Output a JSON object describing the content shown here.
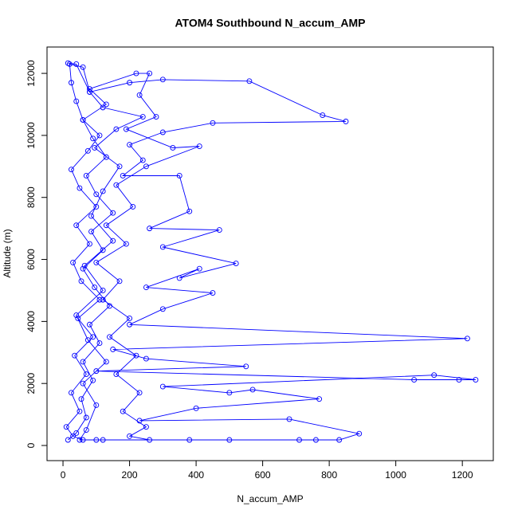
{
  "chart_data": {
    "type": "line",
    "title": "ATOM4 Southbound N_accum_AMP",
    "x_label": "N_accum_AMP",
    "y_label": "Altitude (m)",
    "color": "#0000ff",
    "markers": true,
    "xlim": [
      -48,
      1293
    ],
    "ylim": [
      -488,
      12850
    ],
    "xticks": [
      0,
      200,
      400,
      600,
      800,
      1000,
      1200
    ],
    "yticks": [
      0,
      2000,
      4000,
      6000,
      8000,
      10000,
      12000
    ],
    "x": [
      15,
      40,
      70,
      55,
      90,
      60,
      110,
      80,
      140,
      95,
      60,
      120,
      85,
      150,
      100,
      70,
      130,
      90,
      60,
      40,
      25,
      20,
      60,
      80,
      200,
      300,
      560,
      780,
      850,
      450,
      300,
      200,
      240,
      180,
      350,
      380,
      260,
      470,
      300,
      520,
      350,
      410,
      250,
      450,
      300,
      200,
      1215,
      150,
      250,
      550,
      100,
      1055,
      1190,
      1240,
      1115,
      300,
      500,
      570,
      770,
      400,
      230,
      680,
      890,
      830,
      760,
      710,
      500,
      380,
      120,
      60,
      30,
      10,
      50,
      25,
      70,
      35,
      90,
      45,
      110,
      55,
      30,
      80,
      40,
      100,
      50,
      25,
      75,
      110,
      60,
      130,
      80,
      220,
      260,
      230,
      280,
      190,
      330,
      410,
      250,
      160,
      210,
      130,
      190,
      100,
      170,
      120,
      200,
      140,
      220,
      160,
      230,
      180,
      250,
      200,
      260,
      100,
      50,
      70,
      100,
      60,
      130,
      75,
      40,
      120,
      65,
      150,
      85,
      120,
      170,
      95,
      160,
      240,
      120,
      80,
      40,
      15
    ],
    "y": [
      180,
      400,
      900,
      1500,
      2100,
      2700,
      3300,
      3900,
      4500,
      5100,
      5700,
      6300,
      6900,
      7500,
      8100,
      8700,
      9300,
      9900,
      10500,
      11100,
      11700,
      12300,
      12200,
      11400,
      11700,
      11800,
      11750,
      10650,
      10450,
      10400,
      10100,
      9700,
      9200,
      8700,
      8700,
      7550,
      7000,
      6950,
      6400,
      5870,
      5400,
      5700,
      5100,
      4920,
      4400,
      3900,
      3450,
      3100,
      2800,
      2550,
      2400,
      2120,
      2120,
      2120,
      2270,
      1900,
      1700,
      1800,
      1500,
      1200,
      800,
      850,
      380,
      180,
      180,
      180,
      180,
      180,
      180,
      180,
      300,
      600,
      1100,
      1700,
      2300,
      2900,
      3500,
      4100,
      4700,
      5300,
      5900,
      6500,
      7100,
      7700,
      8300,
      8900,
      9500,
      10000,
      10500,
      11000,
      11500,
      12000,
      12000,
      11300,
      10600,
      10200,
      9600,
      9650,
      9000,
      8400,
      7700,
      7100,
      6500,
      5900,
      5300,
      4700,
      4100,
      3500,
      2900,
      2300,
      1700,
      1100,
      600,
      300,
      180,
      180,
      180,
      500,
      1300,
      2000,
      2700,
      3400,
      4200,
      5000,
      5800,
      6600,
      7400,
      8200,
      9000,
      9600,
      10200,
      10600,
      10900,
      11400,
      12300,
      12330
    ]
  }
}
